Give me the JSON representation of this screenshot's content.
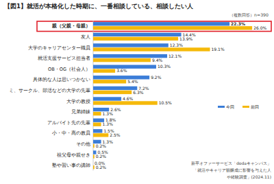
{
  "chart_data": {
    "type": "bar",
    "orientation": "horizontal",
    "title": "【図1】就活が本格化した時期に、一番相談している、相談したい人",
    "subtitle": "（複数回答）n=390",
    "categories": [
      "親（父親・母親）",
      "友人",
      "大学のキャリアセンター職員",
      "就活支援サービス担当者",
      "OB・OG（社会人）",
      "具体的な人は思いつかない",
      "ミ、サークル、部活などの大学の先輩",
      "大学の教授",
      "兄弟姉妹",
      "アルバイト先の先輩",
      "小・中・高の教員",
      "その他",
      "祖父母や親せき",
      "塾や習い事の講師"
    ],
    "series": [
      {
        "name": "今回",
        "color": "#3b7dd8",
        "values": [
          22.3,
          14.4,
          12.3,
          12.1,
          10.3,
          9.2,
          7.2,
          4.6,
          2.6,
          1.8,
          1.5,
          1.3,
          0.5,
          0.0
        ],
        "value_labels": [
          "22.3%",
          "14.4%",
          "12.3%",
          "12.1%",
          "10.3%",
          "9.2%",
          "7.2%",
          "4.6%",
          "2.6%",
          "1.8%",
          "1.5%",
          "1.3%",
          "0.5%",
          "0.0%"
        ]
      },
      {
        "name": "前回",
        "color": "#f5b90a",
        "values": [
          26.0,
          13.9,
          19.1,
          9.4,
          3.6,
          5.4,
          6.3,
          10.5,
          1.3,
          1.3,
          2.5,
          0.2,
          0.2,
          0.2
        ],
        "value_labels": [
          "26.0%",
          "13.9%",
          "19.1%",
          "9.4%",
          "3.6%",
          "5.4%",
          "6.3%",
          "10.5%",
          "1.3%",
          "1.3%",
          "2.5%",
          "0.2%",
          "0.2%",
          "0.2%"
        ]
      }
    ],
    "xlim": [
      0,
      28
    ],
    "tick_labels": "y",
    "data_labels": true,
    "grid": false,
    "legend": "right",
    "annotations": [
      "新卒オファーサービス「dodaキャンパス」",
      "「就活やキャリア観醸成に影響を与えた人",
      "や経験調査」(2024.11)"
    ]
  }
}
